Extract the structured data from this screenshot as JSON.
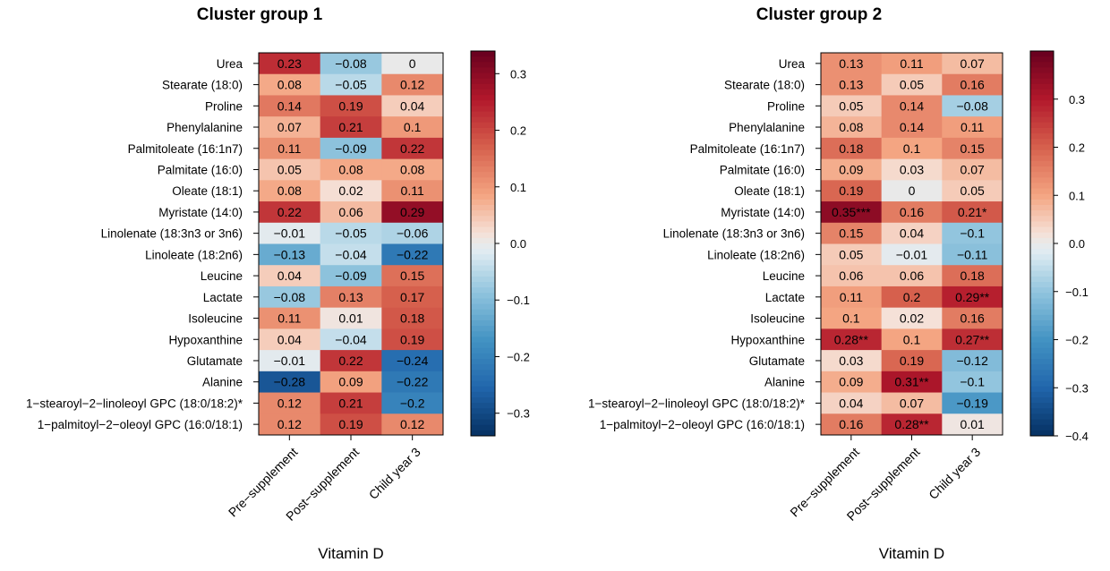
{
  "chart_data": [
    {
      "type": "heatmap",
      "title": "Cluster group 1",
      "xlabel": "Vitamin D",
      "x": [
        "Pre−supplement",
        "Post−supplement",
        "Child year 3"
      ],
      "y": [
        "Urea",
        "Stearate (18:0)",
        "Proline",
        "Phenylalanine",
        "Palmitoleate (16:1n7)",
        "Palmitate (16:0)",
        "Oleate (18:1)",
        "Myristate (14:0)",
        "Linolenate (18:3n3 or 3n6)",
        "Linoleate (18:2n6)",
        "Leucine",
        "Lactate",
        "Isoleucine",
        "Hypoxanthine",
        "Glutamate",
        "Alanine",
        "1−stearoyl−2−linoleoyl GPC (18:0/18:2)*",
        "1−palmitoyl−2−oleoyl GPC (16:0/18:1)"
      ],
      "values": [
        [
          0.23,
          -0.08,
          0
        ],
        [
          0.08,
          -0.05,
          0.12
        ],
        [
          0.14,
          0.19,
          0.04
        ],
        [
          0.07,
          0.21,
          0.1
        ],
        [
          0.11,
          -0.09,
          0.22
        ],
        [
          0.05,
          0.08,
          0.08
        ],
        [
          0.08,
          0.02,
          0.11
        ],
        [
          0.22,
          0.06,
          0.29
        ],
        [
          -0.01,
          -0.05,
          -0.06
        ],
        [
          -0.13,
          -0.04,
          -0.22
        ],
        [
          0.04,
          -0.09,
          0.15
        ],
        [
          -0.08,
          0.13,
          0.17
        ],
        [
          0.11,
          0.01,
          0.18
        ],
        [
          0.04,
          -0.04,
          0.19
        ],
        [
          -0.01,
          0.22,
          -0.24
        ],
        [
          -0.28,
          0.09,
          -0.22
        ],
        [
          0.12,
          0.21,
          -0.2
        ],
        [
          0.12,
          0.19,
          0.12
        ]
      ],
      "labels": [
        [
          "0.23",
          "−0.08",
          "0"
        ],
        [
          "0.08",
          "−0.05",
          "0.12"
        ],
        [
          "0.14",
          "0.19",
          "0.04"
        ],
        [
          "0.07",
          "0.21",
          "0.1"
        ],
        [
          "0.11",
          "−0.09",
          "0.22"
        ],
        [
          "0.05",
          "0.08",
          "0.08"
        ],
        [
          "0.08",
          "0.02",
          "0.11"
        ],
        [
          "0.22",
          "0.06",
          "0.29"
        ],
        [
          "−0.01",
          "−0.05",
          "−0.06"
        ],
        [
          "−0.13",
          "−0.04",
          "−0.22"
        ],
        [
          "0.04",
          "−0.09",
          "0.15"
        ],
        [
          "−0.08",
          "0.13",
          "0.17"
        ],
        [
          "0.11",
          "0.01",
          "0.18"
        ],
        [
          "0.04",
          "−0.04",
          "0.19"
        ],
        [
          "−0.01",
          "0.22",
          "−0.24"
        ],
        [
          "−0.28",
          "0.09",
          "−0.22"
        ],
        [
          "0.12",
          "0.21",
          "−0.2"
        ],
        [
          "0.12",
          "0.19",
          "0.12"
        ]
      ],
      "color_range": [
        -0.34,
        0.34
      ],
      "colorbar_ticks": [
        0.3,
        0.2,
        0.1,
        0.0,
        -0.1,
        -0.2,
        -0.3
      ],
      "colorbar_tick_labels": [
        "0.3",
        "0.2",
        "0.1",
        "0.0",
        "−0.1",
        "−0.2",
        "−0.3"
      ]
    },
    {
      "type": "heatmap",
      "title": "Cluster group 2",
      "xlabel": "Vitamin D",
      "x": [
        "Pre−supplement",
        "Post−supplement",
        "Child year 3"
      ],
      "y": [
        "Urea",
        "Stearate (18:0)",
        "Proline",
        "Phenylalanine",
        "Palmitoleate (16:1n7)",
        "Palmitate (16:0)",
        "Oleate (18:1)",
        "Myristate (14:0)",
        "Linolenate (18:3n3 or 3n6)",
        "Linoleate (18:2n6)",
        "Leucine",
        "Lactate",
        "Isoleucine",
        "Hypoxanthine",
        "Glutamate",
        "Alanine",
        "1−stearoyl−2−linoleoyl GPC (18:0/18:2)*",
        "1−palmitoyl−2−oleoyl GPC (16:0/18:1)"
      ],
      "values": [
        [
          0.13,
          0.11,
          0.07
        ],
        [
          0.13,
          0.05,
          0.16
        ],
        [
          0.05,
          0.14,
          -0.08
        ],
        [
          0.08,
          0.14,
          0.11
        ],
        [
          0.18,
          0.1,
          0.15
        ],
        [
          0.09,
          0.03,
          0.07
        ],
        [
          0.19,
          0,
          0.05
        ],
        [
          0.35,
          0.16,
          0.21
        ],
        [
          0.15,
          0.04,
          -0.1
        ],
        [
          0.05,
          -0.01,
          -0.11
        ],
        [
          0.06,
          0.06,
          0.18
        ],
        [
          0.11,
          0.2,
          0.29
        ],
        [
          0.1,
          0.02,
          0.16
        ],
        [
          0.28,
          0.1,
          0.27
        ],
        [
          0.03,
          0.19,
          -0.12
        ],
        [
          0.09,
          0.31,
          -0.1
        ],
        [
          0.04,
          0.07,
          -0.19
        ],
        [
          0.16,
          0.28,
          0.01
        ]
      ],
      "labels": [
        [
          "0.13",
          "0.11",
          "0.07"
        ],
        [
          "0.13",
          "0.05",
          "0.16"
        ],
        [
          "0.05",
          "0.14",
          "−0.08"
        ],
        [
          "0.08",
          "0.14",
          "0.11"
        ],
        [
          "0.18",
          "0.1",
          "0.15"
        ],
        [
          "0.09",
          "0.03",
          "0.07"
        ],
        [
          "0.19",
          "0",
          "0.05"
        ],
        [
          "0.35***",
          "0.16",
          "0.21*"
        ],
        [
          "0.15",
          "0.04",
          "−0.1"
        ],
        [
          "0.05",
          "−0.01",
          "−0.11"
        ],
        [
          "0.06",
          "0.06",
          "0.18"
        ],
        [
          "0.11",
          "0.2",
          "0.29**"
        ],
        [
          "0.1",
          "0.02",
          "0.16"
        ],
        [
          "0.28**",
          "0.1",
          "0.27**"
        ],
        [
          "0.03",
          "0.19",
          "−0.12"
        ],
        [
          "0.09",
          "0.31**",
          "−0.1"
        ],
        [
          "0.04",
          "0.07",
          "−0.19"
        ],
        [
          "0.16",
          "0.28**",
          "0.01"
        ]
      ],
      "color_range": [
        -0.4,
        0.4
      ],
      "colorbar_ticks": [
        0.3,
        0.2,
        0.1,
        0.0,
        -0.1,
        -0.2,
        -0.3,
        -0.4
      ],
      "colorbar_tick_labels": [
        "0.3",
        "0.2",
        "0.1",
        "0.0",
        "−0.1",
        "−0.2",
        "−0.3",
        "−0.4"
      ]
    }
  ]
}
